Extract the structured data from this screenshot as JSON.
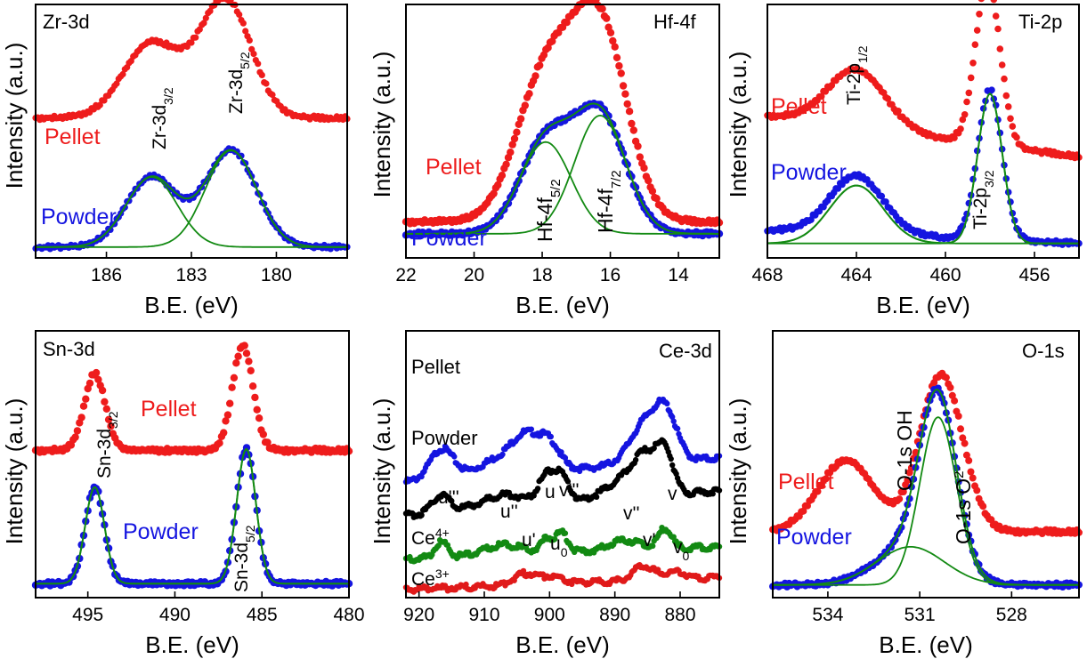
{
  "colors": {
    "pellet": "#ee1c1c",
    "powder": "#1515e0",
    "fit": "#138a13",
    "ce4": "#138a13",
    "ce3": "#e01a1a",
    "powder_ce": "#000000",
    "pellet_ce": "#1515e0"
  },
  "chart_data": [
    {
      "id": "zr",
      "type": "scatter",
      "title": "Zr-3d",
      "xlabel": "B.E. (eV)",
      "ylabel": "Intensity (a.u.)",
      "xlim": [
        188.5,
        177.5
      ],
      "ylim": [
        0,
        1.05
      ],
      "xticks": [
        186,
        183,
        180
      ],
      "tick_labels": [
        "186",
        "183",
        "180"
      ],
      "series_labels": [
        {
          "text": "Pellet",
          "role": "pellet"
        },
        {
          "text": "Powder",
          "role": "powder"
        }
      ],
      "annotations": [
        {
          "main": "Zr-3d",
          "sub": "3/2"
        },
        {
          "main": "Zr-3d",
          "sub": "5/2"
        }
      ],
      "series": [
        {
          "name": "Pellet",
          "role": "pellet",
          "baseline": 0.58,
          "slope": 0,
          "peaks": [
            [
              184.4,
              0.31,
              1.0
            ],
            [
              181.8,
              0.49,
              0.9
            ]
          ]
        },
        {
          "name": "Powder",
          "role": "powder",
          "baseline": 0.045,
          "slope": 0,
          "peaks": [
            [
              184.4,
              0.29,
              0.9
            ],
            [
              181.6,
              0.4,
              0.9
            ]
          ]
        }
      ],
      "fits": [
        {
          "baseline": 0.045,
          "peaks": [
            [
              184.4,
              0.29,
              0.9
            ]
          ]
        },
        {
          "baseline": 0.045,
          "peaks": [
            [
              181.6,
              0.4,
              0.9
            ]
          ]
        }
      ]
    },
    {
      "id": "hf",
      "type": "scatter",
      "title": "Hf-4f",
      "xlabel": "B.E. (eV)",
      "ylabel": "Intensity (a.u.)",
      "xlim": [
        22,
        12.8
      ],
      "ylim": [
        0,
        1.05
      ],
      "xticks": [
        22,
        20,
        18,
        16,
        14
      ],
      "tick_labels": [
        "22",
        "20",
        "18",
        "16",
        "14"
      ],
      "series_labels": [
        {
          "text": "Pellet",
          "role": "pellet"
        },
        {
          "text": "Powder",
          "role": "powder"
        }
      ],
      "annotations": [
        {
          "main": "Hf-4f",
          "sub": "5/2"
        },
        {
          "main": "Hf-4f",
          "sub": "7/2"
        }
      ],
      "series": [
        {
          "name": "Pellet",
          "role": "pellet",
          "baseline": 0.15,
          "slope": 0,
          "peaks": [
            [
              17.9,
              0.6,
              0.85
            ],
            [
              16.3,
              0.79,
              0.8
            ]
          ]
        },
        {
          "name": "Powder",
          "role": "powder",
          "baseline": 0.1,
          "slope": 0,
          "peaks": [
            [
              17.9,
              0.38,
              0.75
            ],
            [
              16.3,
              0.49,
              0.75
            ]
          ]
        }
      ],
      "fits": [
        {
          "baseline": 0.1,
          "peaks": [
            [
              17.9,
              0.38,
              0.75
            ]
          ]
        },
        {
          "baseline": 0.1,
          "peaks": [
            [
              16.3,
              0.49,
              0.75
            ]
          ]
        }
      ]
    },
    {
      "id": "ti",
      "type": "scatter",
      "title": "Ti-2p",
      "xlabel": "B.E. (eV)",
      "ylabel": "Intensity (a.u.)",
      "xlim": [
        468,
        454
      ],
      "ylim": [
        0,
        1.05
      ],
      "xticks": [
        468,
        464,
        460,
        456
      ],
      "tick_labels": [
        "468",
        "464",
        "460",
        "456"
      ],
      "series_labels": [
        {
          "text": "Pellet",
          "role": "pellet"
        },
        {
          "text": "Powder",
          "role": "powder"
        }
      ],
      "annotations": [
        {
          "main": "Ti-2p",
          "sub": "1/2"
        },
        {
          "main": "Ti-2p",
          "sub": "3/2"
        }
      ],
      "series": [
        {
          "name": "Pellet",
          "role": "pellet",
          "baseline": 0.42,
          "slope": 0.012,
          "peaks": [
            [
              464.0,
              0.24,
              1.3
            ],
            [
              458.1,
              0.68,
              0.55
            ]
          ]
        },
        {
          "name": "Powder",
          "role": "powder",
          "baseline": 0.06,
          "slope": 0.004,
          "peaks": [
            [
              464.0,
              0.24,
              1.2
            ],
            [
              458.0,
              0.62,
              0.55
            ]
          ]
        }
      ],
      "fits": [
        {
          "baseline": 0.06,
          "peaks": [
            [
              464.0,
              0.24,
              1.2
            ]
          ]
        },
        {
          "baseline": 0.06,
          "peaks": [
            [
              458.0,
              0.62,
              0.55
            ]
          ]
        }
      ]
    },
    {
      "id": "sn",
      "type": "scatter",
      "title": "Sn-3d",
      "xlabel": "B.E. (eV)",
      "ylabel": "Intensity (a.u.)",
      "xlim": [
        498,
        480
      ],
      "ylim": [
        0,
        1.05
      ],
      "xticks": [
        495,
        490,
        485,
        480
      ],
      "tick_labels": [
        "495",
        "490",
        "485",
        "480"
      ],
      "series_labels": [
        {
          "text": "Pellet",
          "role": "pellet"
        },
        {
          "text": "Powder",
          "role": "powder"
        }
      ],
      "annotations": [
        {
          "main": "Sn-3d",
          "sub": "3/2"
        },
        {
          "main": "Sn-3d",
          "sub": "5/2"
        }
      ],
      "series": [
        {
          "name": "Pellet",
          "role": "pellet",
          "baseline": 0.58,
          "slope": 0,
          "peaks": [
            [
              494.6,
              0.3,
              0.6
            ],
            [
              486.1,
              0.41,
              0.6
            ]
          ]
        },
        {
          "name": "Powder",
          "role": "powder",
          "baseline": 0.055,
          "slope": 0,
          "peaks": [
            [
              494.6,
              0.38,
              0.55
            ],
            [
              485.9,
              0.53,
              0.55
            ]
          ]
        }
      ],
      "fits": [
        {
          "baseline": 0.055,
          "peaks": [
            [
              494.6,
              0.38,
              0.55
            ],
            [
              485.9,
              0.53,
              0.55
            ]
          ]
        }
      ]
    },
    {
      "id": "ce",
      "type": "line",
      "title": "Ce-3d",
      "xlabel": "B.E. (eV)",
      "ylabel": "Intensity (a.u.)",
      "xlim": [
        922,
        874
      ],
      "ylim": [
        0,
        1.05
      ],
      "xticks": [
        920,
        910,
        900,
        890,
        880
      ],
      "tick_labels": [
        "920",
        "910",
        "900",
        "890",
        "880"
      ],
      "series_labels": [
        {
          "text": "Pellet",
          "role": "pellet_ce"
        },
        {
          "text": "Powder",
          "role": "powder_ce"
        }
      ],
      "state_labels": [
        {
          "main": "Ce",
          "sup": "4+"
        },
        {
          "main": "Ce",
          "sup": "3+"
        }
      ],
      "peak_labels": [
        "u'''",
        "u''",
        "u",
        "v'''",
        "v''",
        "v",
        "u'",
        "u",
        "0",
        "v'",
        "v",
        "0"
      ],
      "series": [
        {
          "name": "Pellet",
          "role": "pellet_ce",
          "baseline": 0.55,
          "slope": -0.002,
          "peaks": [
            [
              916.5,
              0.12,
              1.8
            ],
            [
              907,
              0.07,
              3.5
            ],
            [
              903.5,
              0.11,
              2.0
            ],
            [
              900,
              0.1,
              1.6
            ],
            [
              885,
              0.17,
              2.5
            ],
            [
              882,
              0.14,
              1.6
            ]
          ]
        },
        {
          "name": "Powder",
          "role": "powder_ce",
          "baseline": 0.42,
          "slope": -0.002,
          "peaks": [
            [
              916.6,
              0.07,
              1.3
            ],
            [
              907,
              0.05,
              3.5
            ],
            [
              900.5,
              0.1,
              1.2
            ],
            [
              898.2,
              0.1,
              1.2
            ],
            [
              888.5,
              0.07,
              3.0
            ],
            [
              885,
              0.14,
              2.0
            ],
            [
              882.2,
              0.14,
              1.2
            ]
          ]
        },
        {
          "name": "Ce4+",
          "role": "ce4",
          "baseline": 0.2,
          "slope": -0.001,
          "peaks": [
            [
              916.6,
              0.06,
              1.0
            ],
            [
              907,
              0.04,
              3.0
            ],
            [
              900.5,
              0.05,
              0.9
            ],
            [
              898.2,
              0.08,
              1.0
            ],
            [
              888.5,
              0.04,
              2.5
            ],
            [
              882.3,
              0.08,
              1.0
            ]
          ]
        },
        {
          "name": "Ce3+",
          "role": "ce3",
          "baseline": 0.08,
          "slope": -0.001,
          "peaks": [
            [
              903.8,
              0.045,
              1.8
            ],
            [
              899.5,
              0.03,
              1.5
            ],
            [
              885.6,
              0.055,
              1.6
            ],
            [
              880.8,
              0.03,
              1.5
            ]
          ]
        }
      ],
      "fits": []
    },
    {
      "id": "o",
      "type": "scatter",
      "title": "O-1s",
      "xlabel": "B.E. (eV)",
      "ylabel": "Intensity (a.u.)",
      "xlim": [
        535.8,
        525.8
      ],
      "ylim": [
        0,
        1.05
      ],
      "xticks": [
        534,
        531,
        528
      ],
      "tick_labels": [
        "534",
        "531",
        "528"
      ],
      "series_labels": [
        {
          "text": "Pellet",
          "role": "pellet"
        },
        {
          "text": "Powder",
          "role": "powder"
        }
      ],
      "annotations": [
        {
          "main": "O-1s OH",
          "sub": ""
        },
        {
          "main": "O-1s O",
          "sup": "2-"
        }
      ],
      "series": [
        {
          "name": "Pellet",
          "role": "pellet",
          "baseline": 0.26,
          "slope": 0,
          "peaks": [
            [
              533.4,
              0.28,
              0.9
            ],
            [
              530.3,
              0.62,
              0.7
            ]
          ]
        },
        {
          "name": "Powder",
          "role": "powder",
          "baseline": 0.05,
          "slope": 0,
          "peaks": [
            [
              531.3,
              0.15,
              1.1
            ],
            [
              530.4,
              0.66,
              0.6
            ]
          ]
        }
      ],
      "fits": [
        {
          "baseline": 0.05,
          "peaks": [
            [
              531.3,
              0.15,
              1.1
            ]
          ]
        },
        {
          "baseline": 0.05,
          "peaks": [
            [
              530.4,
              0.66,
              0.6
            ]
          ]
        }
      ]
    }
  ]
}
